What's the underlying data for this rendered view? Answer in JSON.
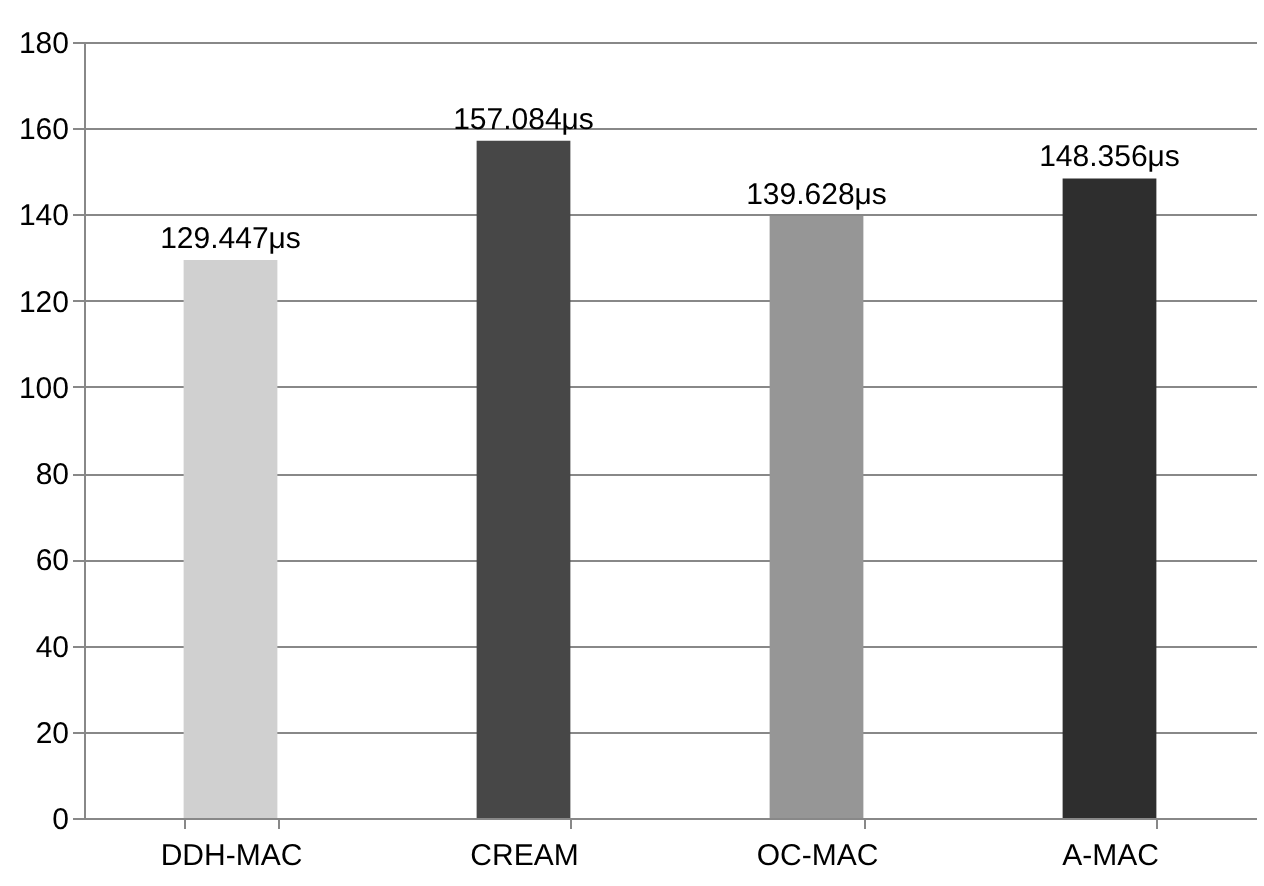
{
  "chart_data": {
    "type": "bar",
    "categories": [
      "DDH-MAC",
      "CREAM",
      "OC-MAC",
      "A-MAC"
    ],
    "values": [
      129.447,
      157.084,
      139.628,
      148.356
    ],
    "colors": [
      "#d0d0d0",
      "#474747",
      "#969696",
      "#2e2e2e"
    ],
    "value_labels": [
      "129.447μs",
      "157.084μs",
      "139.628μs",
      "148.356μs"
    ],
    "ylim": [
      0,
      180
    ],
    "yticks": [
      0,
      20,
      40,
      60,
      80,
      100,
      120,
      140,
      160,
      180
    ],
    "grid": "y"
  }
}
